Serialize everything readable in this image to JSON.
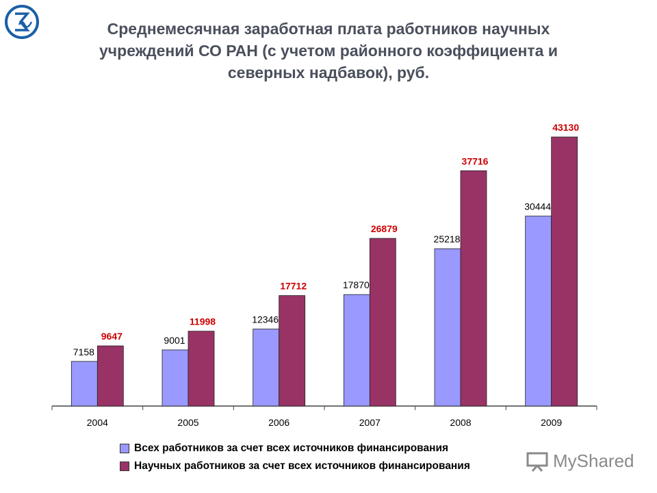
{
  "title_lines": [
    "Среднемесячная заработная плата работников научных",
    "учреждений СО РАН (с учетом районного коэффициента и",
    "северных надбавок), руб."
  ],
  "colors": {
    "series_all": "#9999ff",
    "series_sci": "#993366",
    "label_sci": "#cc0000",
    "label_all": "#000000",
    "title": "#4a4f5c"
  },
  "watermark": {
    "text": "MyShared",
    "icon": "presentation-board-icon"
  },
  "logo": {
    "icon": "so-ran-sigma-logo-icon"
  },
  "chart_data": {
    "type": "bar",
    "categories": [
      "2004",
      "2005",
      "2006",
      "2007",
      "2008",
      "2009"
    ],
    "series": [
      {
        "name": "Всех работников за счет всех источников финансирования",
        "values": [
          7158,
          9001,
          12346,
          17870,
          25218,
          30444
        ]
      },
      {
        "name": "Научных работников за счет всех источников финансирования",
        "values": [
          9647,
          11998,
          17712,
          26879,
          37716,
          43130
        ]
      }
    ],
    "ylim": [
      0,
      46000
    ],
    "grid": false,
    "legend_position": "bottom"
  }
}
